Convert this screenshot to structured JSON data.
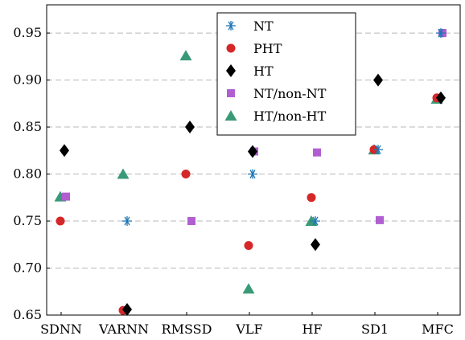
{
  "chart_data": {
    "type": "scatter",
    "categories": [
      "SDNN",
      "VARNN",
      "RMSSD",
      "VLF",
      "HF",
      "SD1",
      "MFC"
    ],
    "ylim": [
      0.65,
      0.98
    ],
    "yticks": [
      0.65,
      0.7,
      0.75,
      0.8,
      0.85,
      0.9,
      0.95
    ],
    "ytick_labels": [
      "0.65",
      "0.70",
      "0.75",
      "0.80",
      "0.85",
      "0.90",
      "0.95"
    ],
    "grid": "horizontal dashed",
    "legend_position": "top-center",
    "series": [
      {
        "name": "NT",
        "marker": "asterisk",
        "color": "#1f77b4",
        "values": [
          null,
          0.75,
          null,
          0.8,
          0.75,
          0.826,
          0.95
        ]
      },
      {
        "name": "PHT",
        "marker": "circle",
        "color": "#d62728",
        "values": [
          0.75,
          0.655,
          0.8,
          0.724,
          0.775,
          0.826,
          0.881
        ]
      },
      {
        "name": "HT",
        "marker": "diamond",
        "color": "#000000",
        "values": [
          0.825,
          0.656,
          0.85,
          0.824,
          0.725,
          0.9,
          0.881
        ]
      },
      {
        "name": "NT/non-NT",
        "marker": "square",
        "color": "#b15fd0",
        "values": [
          0.776,
          null,
          0.75,
          0.824,
          0.823,
          0.751,
          0.95
        ]
      },
      {
        "name": "HT/non-HT",
        "marker": "triangle",
        "color": "#3a9a78",
        "values": [
          0.776,
          0.8,
          0.926,
          0.678,
          0.75,
          0.826,
          0.88
        ]
      }
    ]
  }
}
